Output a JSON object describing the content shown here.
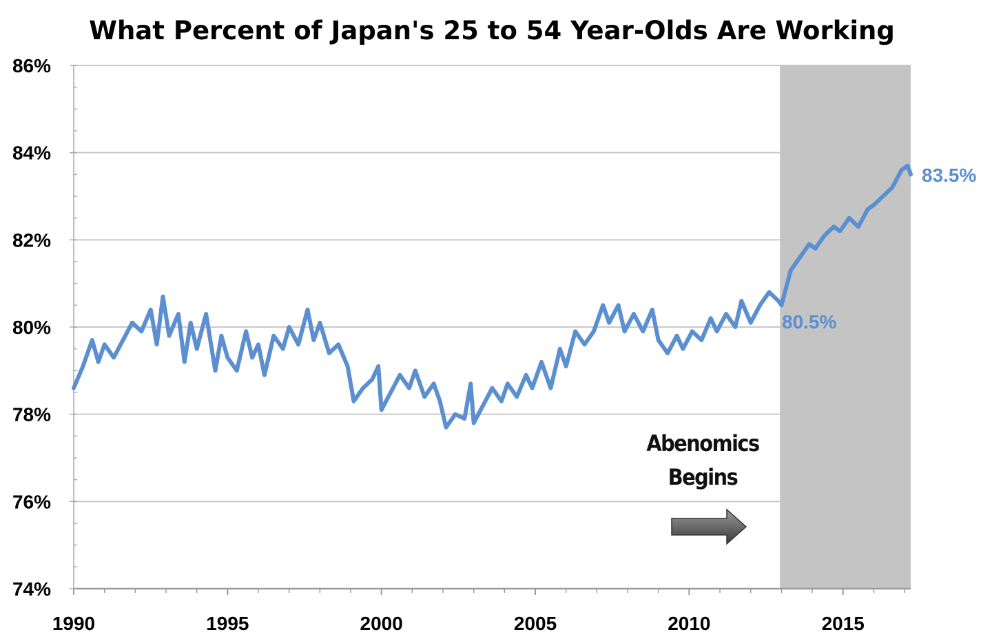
{
  "chart_data": {
    "type": "line",
    "title": "What Percent of Japan's 25 to 54 Year-Olds Are Working",
    "xlabel": "",
    "ylabel": "",
    "x_ticks": [
      "1990",
      "1995",
      "2000",
      "2005",
      "2010",
      "2015"
    ],
    "y_ticks": [
      "74%",
      "76%",
      "78%",
      "80%",
      "82%",
      "84%",
      "86%"
    ],
    "xlim": [
      1990,
      2017.2
    ],
    "ylim": [
      74,
      86
    ],
    "grid": "horizontal",
    "legend": "none",
    "series": [
      {
        "color": "#5b8fd0",
        "x": [
          1990,
          1990.3,
          1990.6,
          1990.8,
          1991.0,
          1991.3,
          1991.6,
          1991.9,
          1992.2,
          1992.5,
          1992.7,
          1992.9,
          1993.1,
          1993.4,
          1993.6,
          1993.8,
          1994.0,
          1994.3,
          1994.6,
          1994.8,
          1995.0,
          1995.3,
          1995.6,
          1995.8,
          1996.0,
          1996.2,
          1996.5,
          1996.8,
          1997.0,
          1997.3,
          1997.6,
          1997.8,
          1998.0,
          1998.3,
          1998.6,
          1998.9,
          1999.1,
          1999.4,
          1999.7,
          1999.9,
          2000.0,
          2000.3,
          2000.6,
          2000.9,
          2001.1,
          2001.4,
          2001.7,
          2001.9,
          2002.1,
          2002.4,
          2002.7,
          2002.9,
          2003.0,
          2003.3,
          2003.6,
          2003.9,
          2004.1,
          2004.4,
          2004.7,
          2004.9,
          2005.2,
          2005.5,
          2005.8,
          2006.0,
          2006.3,
          2006.6,
          2006.9,
          2007.2,
          2007.4,
          2007.7,
          2007.9,
          2008.2,
          2008.5,
          2008.8,
          2009.0,
          2009.3,
          2009.6,
          2009.8,
          2010.1,
          2010.4,
          2010.7,
          2010.9,
          2011.2,
          2011.5,
          2011.7,
          2012.0,
          2012.3,
          2012.6,
          2012.9,
          2013.0,
          2013.3,
          2013.6,
          2013.9,
          2014.1,
          2014.4,
          2014.7,
          2014.9,
          2015.2,
          2015.5,
          2015.8,
          2016.0,
          2016.3,
          2016.6,
          2016.9,
          2017.1,
          2017.2
        ],
        "y": [
          78.6,
          79.1,
          79.7,
          79.2,
          79.6,
          79.3,
          79.7,
          80.1,
          79.9,
          80.4,
          79.6,
          80.7,
          79.8,
          80.3,
          79.2,
          80.1,
          79.5,
          80.3,
          79.0,
          79.8,
          79.3,
          79.0,
          79.9,
          79.3,
          79.6,
          78.9,
          79.8,
          79.5,
          80.0,
          79.6,
          80.4,
          79.7,
          80.1,
          79.4,
          79.6,
          79.1,
          78.3,
          78.6,
          78.8,
          79.1,
          78.1,
          78.5,
          78.9,
          78.6,
          79.0,
          78.4,
          78.7,
          78.3,
          77.7,
          78.0,
          77.9,
          78.7,
          77.8,
          78.2,
          78.6,
          78.3,
          78.7,
          78.4,
          78.9,
          78.6,
          79.2,
          78.6,
          79.5,
          79.1,
          79.9,
          79.6,
          79.9,
          80.5,
          80.1,
          80.5,
          79.9,
          80.3,
          79.9,
          80.4,
          79.7,
          79.4,
          79.8,
          79.5,
          79.9,
          79.7,
          80.2,
          79.9,
          80.3,
          80.0,
          80.6,
          80.1,
          80.5,
          80.8,
          80.6,
          80.5,
          81.3,
          81.6,
          81.9,
          81.8,
          82.1,
          82.3,
          82.2,
          82.5,
          82.3,
          82.7,
          82.8,
          83.0,
          83.2,
          83.6,
          83.7,
          83.5
        ]
      }
    ],
    "shaded_region": {
      "x_start": 2012.95,
      "x_end": 2017.2
    },
    "annotations": {
      "start_value": "80.5%",
      "end_value": "83.5%",
      "abenomics_line1": "Abenomics",
      "abenomics_line2": "Begins"
    },
    "colors": {
      "line": "#5b8fd0",
      "shade": "#c4c4c4",
      "grid": "#c9c9c9",
      "arrow": "#6b6b6b"
    }
  }
}
